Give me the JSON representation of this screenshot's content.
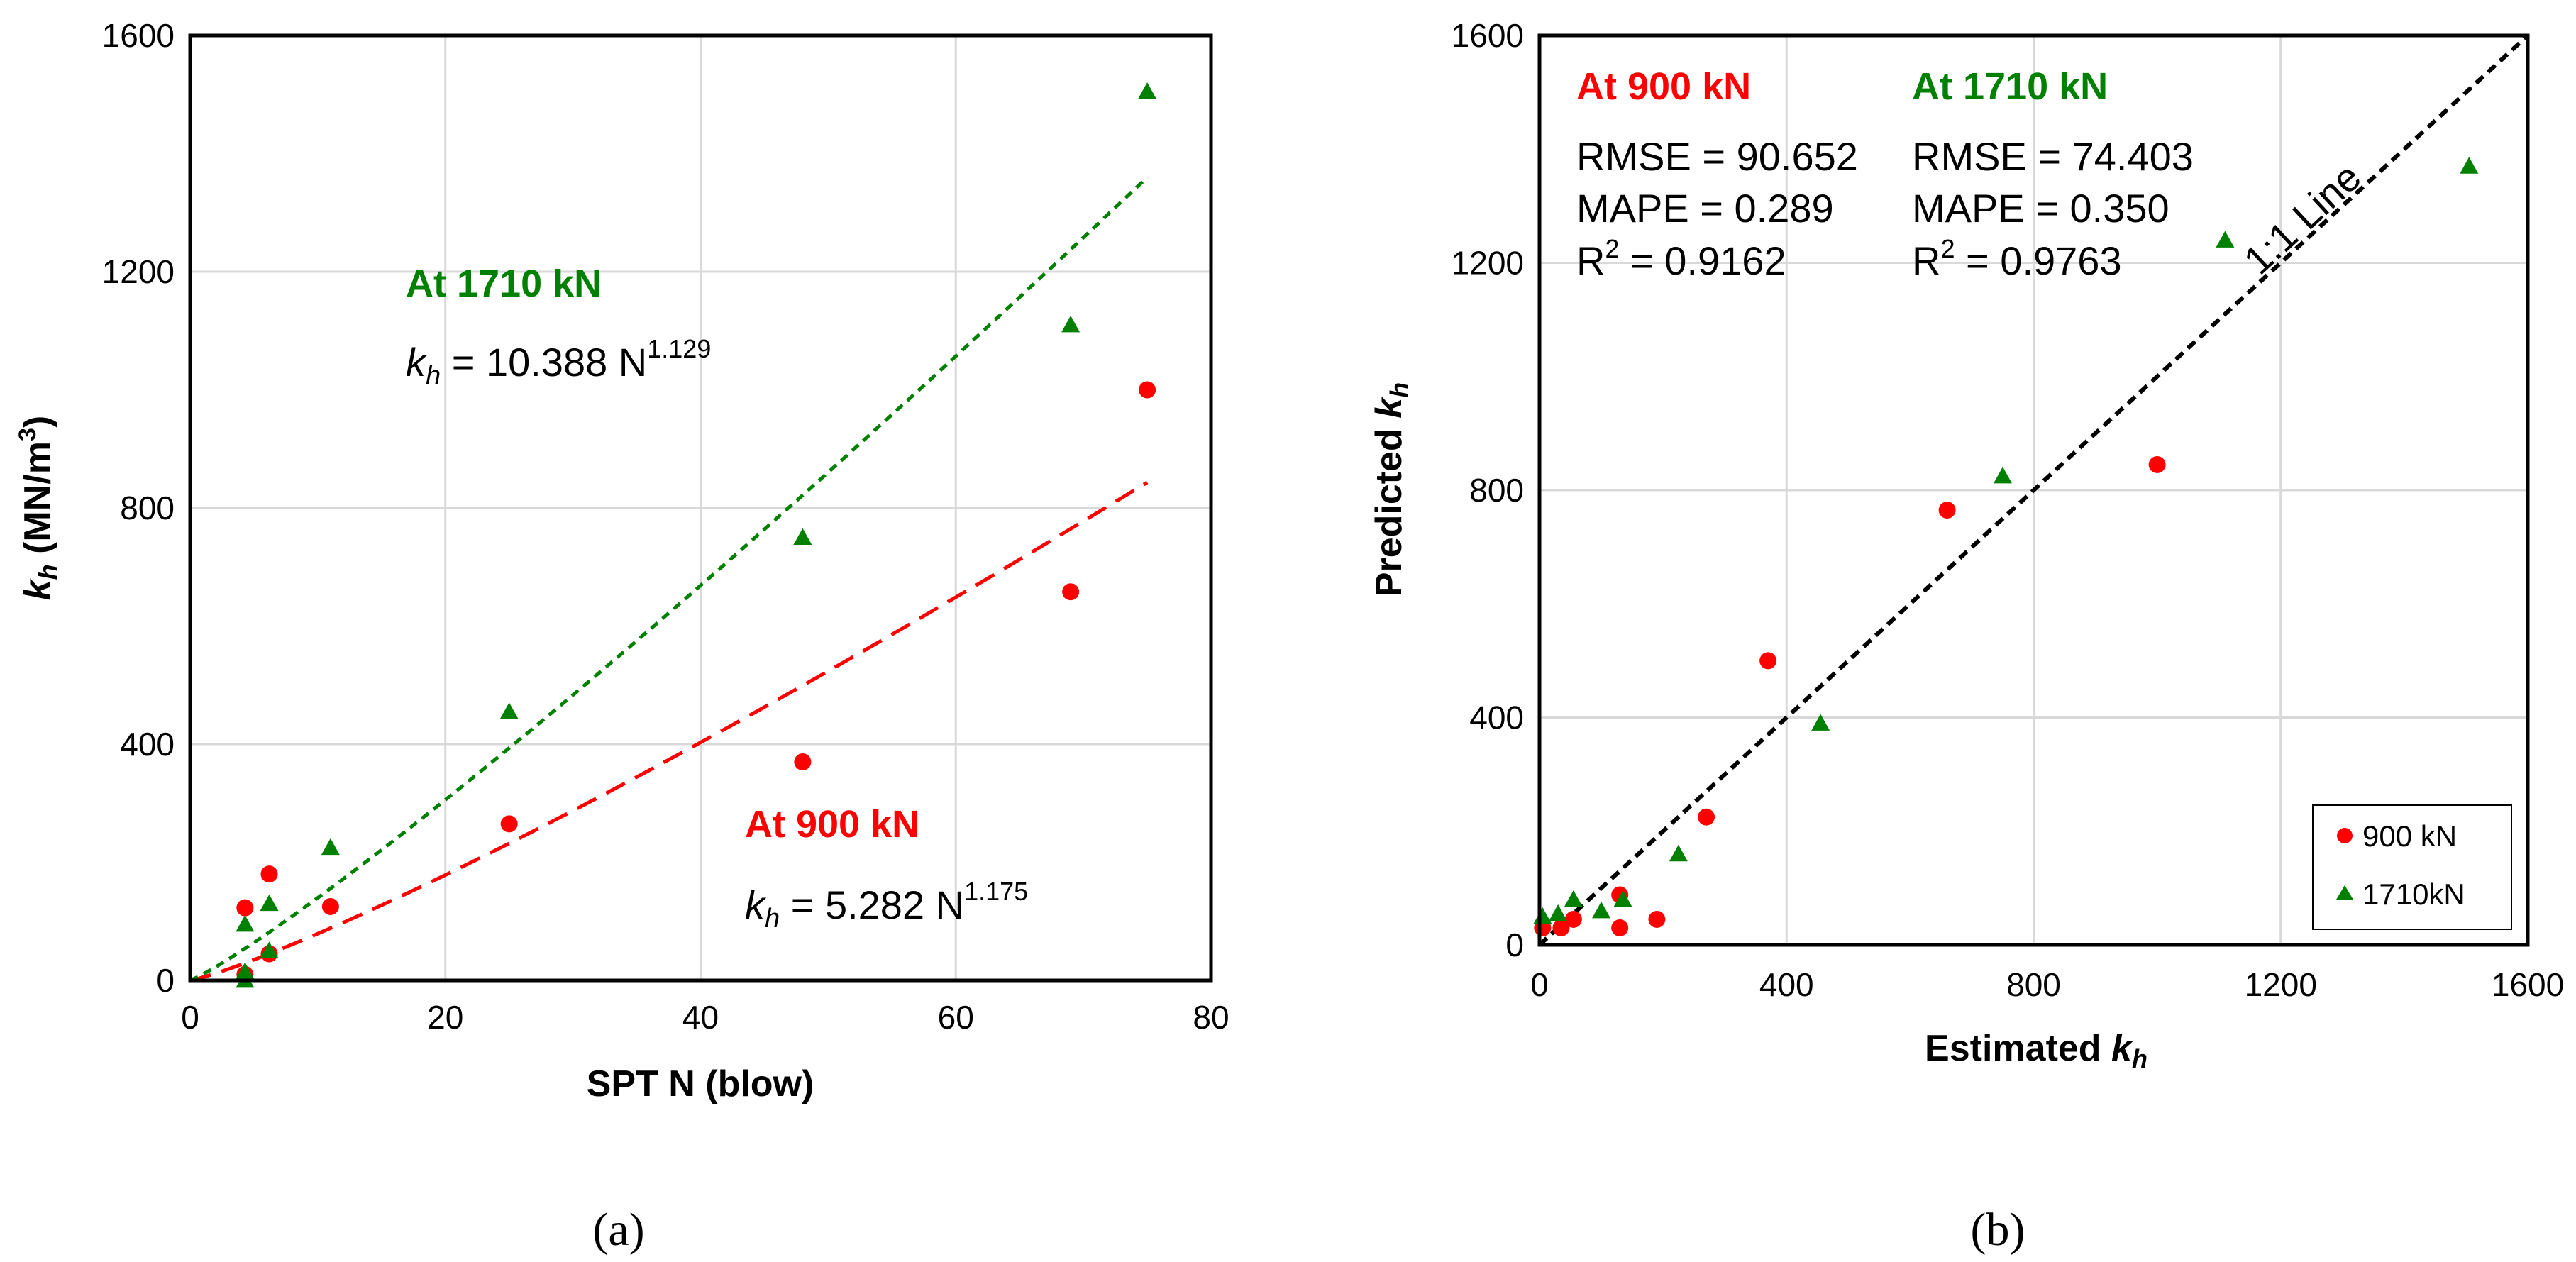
{
  "colors": {
    "red": "#ff0000",
    "green": "#008000",
    "black": "#000000",
    "grid": "#d9d9d9"
  },
  "chart_data": [
    {
      "type": "scatter",
      "panel_caption": "(a)",
      "xlabel": "SPT N (blow)",
      "ylabel": {
        "k": "k",
        "sub": "h",
        "rest": " (MN/m",
        "sup": "3",
        "close": ")"
      },
      "xlim": [
        0,
        80
      ],
      "ylim": [
        0,
        1600
      ],
      "xticks": [
        "0",
        "20",
        "40",
        "60",
        "80"
      ],
      "yticks": [
        "0",
        "400",
        "800",
        "1200",
        "1600"
      ],
      "grid": true,
      "series": [
        {
          "name": "At 900 kN",
          "marker": "circle",
          "color": "#ff0000",
          "points": [
            [
              4.3,
              10
            ],
            [
              4.3,
              123
            ],
            [
              6.2,
              180
            ],
            [
              6.2,
              45
            ],
            [
              11,
              125
            ],
            [
              25,
              265
            ],
            [
              48,
              370
            ],
            [
              69,
              658
            ],
            [
              75,
              1000
            ]
          ]
        },
        {
          "name": "At 1710 kN",
          "marker": "triangle",
          "color": "#008000",
          "points": [
            [
              4.3,
              0
            ],
            [
              4.3,
              15
            ],
            [
              4.3,
              95
            ],
            [
              6.2,
              130
            ],
            [
              6.2,
              50
            ],
            [
              11,
              225
            ],
            [
              25,
              455
            ],
            [
              48,
              750
            ],
            [
              69,
              1110
            ],
            [
              75,
              1505
            ]
          ]
        }
      ],
      "fits": [
        {
          "name": "900 kN fit",
          "a": 5.282,
          "b": 1.175,
          "range": [
            0,
            75
          ],
          "color": "#ff0000",
          "style": "long-dash"
        },
        {
          "name": "1710 kN fit",
          "a": 10.388,
          "b": 1.129,
          "range": [
            0,
            75
          ],
          "color": "#008000",
          "style": "short-dash"
        }
      ],
      "annotations": {
        "green_title": "At 1710 kN",
        "green_eq": {
          "k": "k",
          "sub": "h",
          "rest": " = 10.388 N",
          "sup": "1.129"
        },
        "red_title": "At 900 kN",
        "red_eq": {
          "k": "k",
          "sub": "h",
          "rest": " = 5.282 N",
          "sup": "1.175"
        }
      }
    },
    {
      "type": "scatter",
      "panel_caption": "(b)",
      "xlabel": {
        "text": "Estimated ",
        "k": "k",
        "sub": "h"
      },
      "ylabel": {
        "text": "Predicted ",
        "k": "k",
        "sub": "h"
      },
      "xlim": [
        0,
        1600
      ],
      "ylim": [
        0,
        1600
      ],
      "xticks": [
        "0",
        "400",
        "800",
        "1200",
        "1600"
      ],
      "yticks": [
        "0",
        "400",
        "800",
        "1200",
        "1600"
      ],
      "grid": true,
      "series": [
        {
          "name": "900 kN",
          "marker": "circle",
          "color": "#ff0000",
          "points": [
            [
              5,
              30
            ],
            [
              35,
              30
            ],
            [
              55,
              45
            ],
            [
              130,
              88
            ],
            [
              130,
              30
            ],
            [
              190,
              45
            ],
            [
              270,
              225
            ],
            [
              370,
              500
            ],
            [
              660,
              765
            ],
            [
              1000,
              845
            ]
          ]
        },
        {
          "name": "1710kN",
          "marker": "triangle",
          "color": "#008000",
          "points": [
            [
              5,
              50
            ],
            [
              30,
              55
            ],
            [
              55,
              80
            ],
            [
              100,
              60
            ],
            [
              135,
              80
            ],
            [
              225,
              160
            ],
            [
              455,
              390
            ],
            [
              750,
              825
            ],
            [
              1110,
              1240
            ],
            [
              1505,
              1370
            ]
          ]
        }
      ],
      "reference_line": {
        "label": "1:1 Line",
        "from": [
          0,
          0
        ],
        "to": [
          1600,
          1600
        ],
        "color": "#000000",
        "style": "dash"
      },
      "stats": {
        "red_title": "At 900 kN",
        "red_rmse": "RMSE = 90.652",
        "red_mape": "MAPE = 0.289",
        "red_r2_prefix": "R",
        "red_r2_sup": "2",
        "red_r2_val": " = 0.9162",
        "green_title": "At 1710 kN",
        "green_rmse": "RMSE = 74.403",
        "green_mape": "MAPE = 0.350",
        "green_r2_prefix": "R",
        "green_r2_sup": "2",
        "green_r2_val": " = 0.9763"
      },
      "legend": {
        "position": "bottom-right",
        "entries": [
          "900 kN",
          "1710kN"
        ]
      }
    }
  ]
}
